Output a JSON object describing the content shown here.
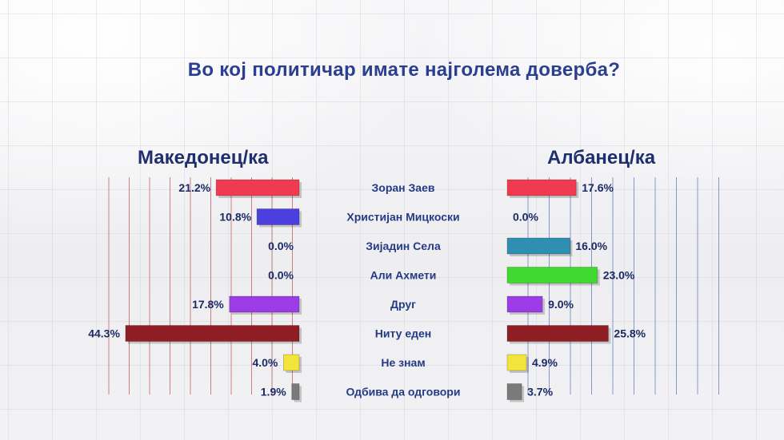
{
  "title": "Во кој политичар имате најголема доверба?",
  "chart_data": {
    "type": "bar",
    "title": "Во кој политичар имате најголема доверба?",
    "categories": [
      "Зоран Заев",
      "Христијан Мицкоски",
      "Зијадин Села",
      "Али Ахмети",
      "Друг",
      "Ниту еден",
      "Не знам",
      "Одбива да одговори"
    ],
    "series": [
      {
        "name": "Македонец/ка",
        "values": [
          21.2,
          10.8,
          0.0,
          0.0,
          17.8,
          44.3,
          4.0,
          1.9
        ],
        "labels": [
          "21.2%",
          "10.8%",
          "0.0%",
          "0.0%",
          "17.8%",
          "44.3%",
          "4.0%",
          "1.9%"
        ]
      },
      {
        "name": "Албанец/ка",
        "values": [
          17.6,
          0.0,
          16.0,
          23.0,
          9.0,
          25.8,
          4.9,
          3.7
        ],
        "labels": [
          "17.6%",
          "0.0%",
          "16.0%",
          "23.0%",
          "9.0%",
          "25.8%",
          "4.9%",
          "3.7%"
        ]
      }
    ],
    "bar_colors": [
      "#f03a4f",
      "#4c3fe0",
      "#2f8fb0",
      "#3fd92f",
      "#9b3ce6",
      "#8e1d24",
      "#f2e43a",
      "#7a7a7a"
    ],
    "grid_color_left": "#b02525",
    "grid_color_right": "#2e4fb0",
    "grid": true,
    "legend_placement": "top"
  }
}
